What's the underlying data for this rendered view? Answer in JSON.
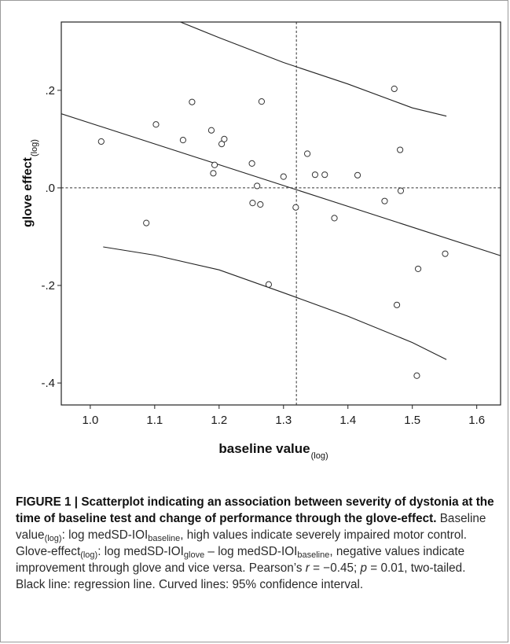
{
  "chart_data": {
    "type": "scatter",
    "x_tick_labels": [
      "1.0",
      "1.1",
      "1.2",
      "1.3",
      "1.4",
      "1.5",
      "1.6"
    ],
    "x_ticks": [
      1.0,
      1.1,
      1.2,
      1.3,
      1.4,
      1.5,
      1.6
    ],
    "y_tick_labels": [
      ".2",
      ".0",
      "-.2",
      "-.4"
    ],
    "y_ticks": [
      0.2,
      0.0,
      -0.2,
      -0.4
    ],
    "xlim": [
      0.955,
      1.637
    ],
    "ylim": [
      -0.445,
      0.34
    ],
    "xlabel_main": "baseline value",
    "xlabel_sub": "(log)",
    "ylabel_main": "glove effect",
    "ylabel_sub": "(log)",
    "reference_x": 1.32,
    "reference_y": 0.0,
    "regression": {
      "x": [
        0.955,
        1.637
      ],
      "y": [
        0.152,
        -0.139
      ]
    },
    "ci_upper": {
      "x": [
        1.14,
        1.2,
        1.3,
        1.4,
        1.5,
        1.553
      ],
      "y": [
        0.34,
        0.308,
        0.257,
        0.213,
        0.164,
        0.147
      ]
    },
    "ci_lower": {
      "x": [
        1.02,
        1.1,
        1.2,
        1.3,
        1.4,
        1.5,
        1.553
      ],
      "y": [
        -0.121,
        -0.138,
        -0.168,
        -0.215,
        -0.263,
        -0.317,
        -0.352
      ]
    },
    "points": [
      {
        "x": 1.017,
        "y": 0.095
      },
      {
        "x": 1.087,
        "y": -0.072
      },
      {
        "x": 1.102,
        "y": 0.13
      },
      {
        "x": 1.144,
        "y": 0.098
      },
      {
        "x": 1.158,
        "y": 0.176
      },
      {
        "x": 1.188,
        "y": 0.118
      },
      {
        "x": 1.191,
        "y": 0.03
      },
      {
        "x": 1.193,
        "y": 0.047
      },
      {
        "x": 1.204,
        "y": 0.09
      },
      {
        "x": 1.208,
        "y": 0.1
      },
      {
        "x": 1.251,
        "y": 0.05
      },
      {
        "x": 1.252,
        "y": -0.031
      },
      {
        "x": 1.259,
        "y": 0.004
      },
      {
        "x": 1.264,
        "y": -0.034
      },
      {
        "x": 1.266,
        "y": 0.177
      },
      {
        "x": 1.277,
        "y": -0.198
      },
      {
        "x": 1.3,
        "y": 0.023
      },
      {
        "x": 1.319,
        "y": -0.04
      },
      {
        "x": 1.337,
        "y": 0.07
      },
      {
        "x": 1.349,
        "y": 0.027
      },
      {
        "x": 1.364,
        "y": 0.027
      },
      {
        "x": 1.379,
        "y": -0.062
      },
      {
        "x": 1.415,
        "y": 0.026
      },
      {
        "x": 1.457,
        "y": -0.027
      },
      {
        "x": 1.472,
        "y": 0.203
      },
      {
        "x": 1.476,
        "y": -0.24
      },
      {
        "x": 1.481,
        "y": 0.078
      },
      {
        "x": 1.482,
        "y": -0.006
      },
      {
        "x": 1.507,
        "y": -0.385
      },
      {
        "x": 1.509,
        "y": -0.166
      },
      {
        "x": 1.551,
        "y": -0.135
      }
    ]
  },
  "caption": {
    "bold_text": "FIGURE 1 | Scatterplot indicating an association between severity of dystonia at the time of baseline test and change of performance through the glove-effect.",
    "body": {
      "s1": " Baseline value",
      "s1_sub": "(log)",
      "s2": ": log medSD-IOI",
      "s2_sub": "baseline",
      "s3": ", high values indicate severely impaired motor control. Glove-effect",
      "s3_sub": "(log)",
      "s4": ": log medSD-IOI",
      "s4_sub": "glove",
      "s5": " – log medSD-IOI",
      "s5_sub": "baseline",
      "s6": ", negative values indicate improvement through glove and vice versa. Pearson’s ",
      "r_symbol": "r",
      "s7": " = −0.45; ",
      "p_symbol": "p",
      "s8": " = 0.01, two-tailed. Black line: regression line. Curved lines: 95% confidence interval."
    }
  }
}
